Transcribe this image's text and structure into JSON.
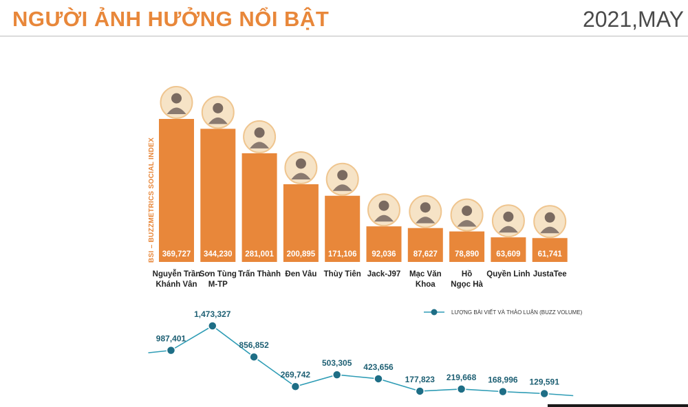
{
  "header": {
    "title": "NGƯỜI ẢNH HƯỞNG NỔI BẬT",
    "date": "2021,MAY"
  },
  "colors": {
    "accent": "#E8873A",
    "bar": "#E8873A",
    "bar_label": "#ffffff",
    "line": "#2E9CB5",
    "marker": "#1E6E86",
    "value_text": "#1D5F73",
    "name_text": "#222222"
  },
  "chart_data": [
    {
      "type": "bar",
      "ylabel": "BSI – BUZZMETRICS SOCIAL INDEX",
      "categories": [
        [
          "Nguyễn Trần",
          "Khánh Vân"
        ],
        [
          "Sơn Tùng",
          "M-TP"
        ],
        [
          "Trấn Thành"
        ],
        [
          "Đen Vâu"
        ],
        [
          "Thùy Tiên"
        ],
        [
          "Jack-J97"
        ],
        [
          "Mạc Văn",
          "Khoa"
        ],
        [
          "Hồ",
          "Ngọc Hà"
        ],
        [
          "Quyền Linh"
        ],
        [
          "JustaTee"
        ]
      ],
      "values": [
        369727,
        344230,
        281001,
        200895,
        171106,
        92036,
        87627,
        78890,
        63609,
        61741
      ],
      "value_labels": [
        "369,727",
        "344,230",
        "281,001",
        "200,895",
        "171,106",
        "92,036",
        "87,627",
        "78,890",
        "63,609",
        "61,741"
      ],
      "grid": false
    },
    {
      "type": "line",
      "legend": "LƯỢNG BÀI VIẾT VÀ THẢO LUẬN (BUZZ VOLUME)",
      "legend_position": "top-right",
      "series": [
        {
          "name": "LƯỢNG BÀI VIẾT VÀ THẢO LUẬN (BUZZ VOLUME)",
          "values": [
            987401,
            1473327,
            856852,
            269742,
            503305,
            423656,
            177823,
            219668,
            168996,
            129591
          ],
          "value_labels": [
            "987,401",
            "1,473,327",
            "856,852",
            "269,742",
            "503,305",
            "423,656",
            "177,823",
            "219,668",
            "168,996",
            "129,591"
          ]
        }
      ],
      "grid": false
    }
  ]
}
